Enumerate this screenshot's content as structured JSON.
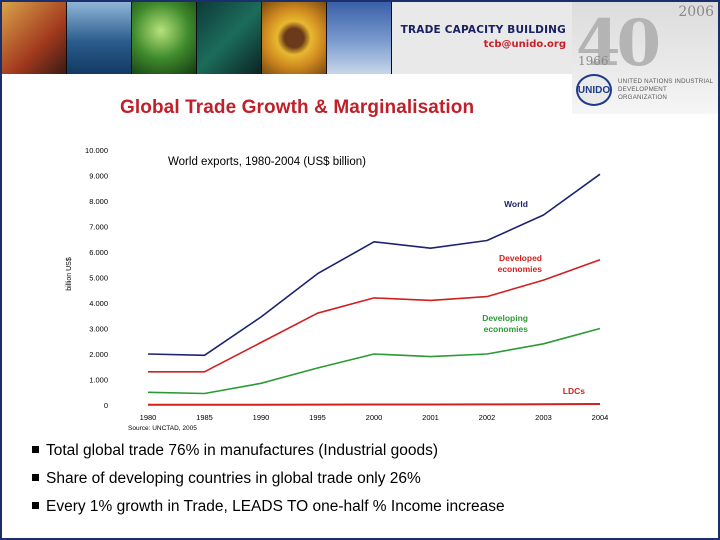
{
  "header": {
    "title": "TRADE CAPACITY BUILDING",
    "email": "tcb@unido.org",
    "logo": {
      "anniversary": "40",
      "year_start": "1966",
      "year_end": "2006",
      "abbrev": "UNIDO",
      "org_name": "UNITED NATIONS INDUSTRIAL DEVELOPMENT ORGANIZATION"
    }
  },
  "slide_title": "Global Trade Growth & Marginalisation",
  "chart_data": {
    "type": "line",
    "title": "World exports, 1980-2004 (US$ billion)",
    "ylabel": "billion US$",
    "xlabel": "",
    "source": "Source: UNCTAD, 2005",
    "categories": [
      "1980",
      "1985",
      "1990",
      "1995",
      "2000",
      "2001",
      "2002",
      "2003",
      "2004"
    ],
    "ylim": [
      0,
      10000
    ],
    "y_ticks": [
      "0",
      "1.000",
      "2.000",
      "3.000",
      "4.000",
      "5.000",
      "6.000",
      "7.000",
      "8.000",
      "9.000",
      "10.000"
    ],
    "grid": false,
    "series": [
      {
        "name": "World",
        "label": "World",
        "color": "#1c2370",
        "values": [
          2000,
          1950,
          3450,
          5150,
          6400,
          6150,
          6450,
          7450,
          9050
        ]
      },
      {
        "name": "Developed economies",
        "label_lines": [
          "Developed",
          "economies"
        ],
        "color": "#d02020",
        "values": [
          1300,
          1300,
          2450,
          3600,
          4200,
          4100,
          4250,
          4900,
          5700
        ]
      },
      {
        "name": "Developing economies",
        "label_lines": [
          "Developing",
          "economies"
        ],
        "color": "#2b9a35",
        "values": [
          500,
          450,
          850,
          1450,
          2000,
          1900,
          2000,
          2400,
          3000
        ]
      },
      {
        "name": "LDCs",
        "label": "LDCs",
        "color": "#d02020",
        "values": [
          10,
          10,
          12,
          15,
          20,
          20,
          25,
          30,
          40
        ]
      }
    ]
  },
  "bullets": [
    "Total global trade 76% in manufactures (Industrial goods)",
    "Share of developing countries in global trade only 26%",
    "Every 1% growth in Trade,  LEADS TO  one-half  %  Income increase"
  ]
}
